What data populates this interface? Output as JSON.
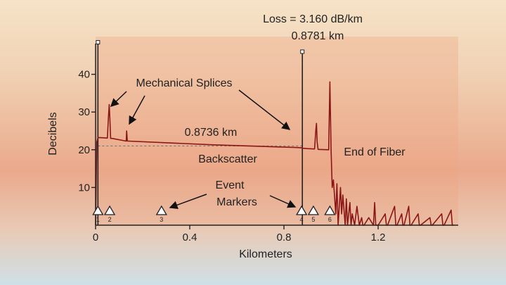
{
  "chart_data": {
    "type": "line",
    "title": "",
    "xlabel": "Kilometers",
    "ylabel": "Decibels",
    "xlim": [
      0,
      1.54
    ],
    "ylim": [
      0,
      50
    ],
    "xticks": [
      0,
      0.4,
      0.8,
      1.2
    ],
    "xtick_labels": [
      "0",
      "0.4",
      "0.8",
      "1.2"
    ],
    "yticks": [
      10,
      20,
      30,
      40
    ],
    "ytick_labels": [
      "10",
      "20",
      "30",
      "40"
    ],
    "grid": false,
    "series": [
      {
        "color": "#8b1616",
        "x": [
          0.0,
          0.005,
          0.01,
          0.02,
          0.05,
          0.055,
          0.058,
          0.061,
          0.064,
          0.07,
          0.13,
          0.132,
          0.135,
          0.14,
          0.5,
          0.85,
          0.877,
          0.88,
          0.9,
          0.93,
          0.935,
          0.938,
          0.941,
          0.945,
          0.99,
          0.995,
          1.0,
          1.005,
          1.01,
          1.02,
          1.025,
          1.03,
          1.04,
          1.045,
          1.05,
          1.06,
          1.065,
          1.07,
          1.08,
          1.085,
          1.09,
          1.1,
          1.11,
          1.12,
          1.13,
          1.135,
          1.14,
          1.16,
          1.18,
          1.185,
          1.19,
          1.2,
          1.23,
          1.235,
          1.24,
          1.27,
          1.275,
          1.28,
          1.3,
          1.305,
          1.31,
          1.33,
          1.335,
          1.34,
          1.37,
          1.375,
          1.38,
          1.42,
          1.425,
          1.43,
          1.47,
          1.475,
          1.48,
          1.51,
          1.515,
          1.52
        ],
        "y": [
          0,
          22,
          23.2,
          23.2,
          23.1,
          29,
          32,
          28,
          23,
          23,
          22.3,
          25,
          22.3,
          22.3,
          21.3,
          20.6,
          20.5,
          20.4,
          20.3,
          20.2,
          25,
          27,
          22,
          20.1,
          20,
          38,
          20,
          10,
          12,
          3,
          11,
          0,
          10,
          3,
          8,
          0,
          7,
          0,
          6,
          0,
          3,
          0,
          5,
          0,
          2,
          0,
          0,
          2,
          0,
          6,
          0,
          0,
          3,
          0,
          0,
          5,
          0,
          0,
          3,
          0,
          0,
          5,
          0,
          0,
          3,
          0,
          0,
          2,
          0,
          0,
          3,
          0,
          0,
          4,
          0,
          0
        ]
      }
    ],
    "backscatter_level": 21,
    "cursors": [
      {
        "x": 0.01,
        "top": 48.5
      },
      {
        "x": 0.8781,
        "top": 46
      }
    ],
    "event_markers": [
      {
        "x": 0.01,
        "label": "1"
      },
      {
        "x": 0.06,
        "label": "2"
      },
      {
        "x": 0.28,
        "label": "3"
      },
      {
        "x": 0.875,
        "label": "4"
      },
      {
        "x": 0.925,
        "label": "5"
      },
      {
        "x": 0.995,
        "label": "6"
      }
    ],
    "annotations": {
      "loss": "Loss = 3.160 dB/km",
      "distance": "0.8781 km",
      "splices": "Mechanical Splices",
      "segment": "0.8736 km",
      "backscatter": "Backscatter",
      "end": "End of Fiber",
      "event_line1": "Event",
      "event_line2": "Markers"
    }
  }
}
